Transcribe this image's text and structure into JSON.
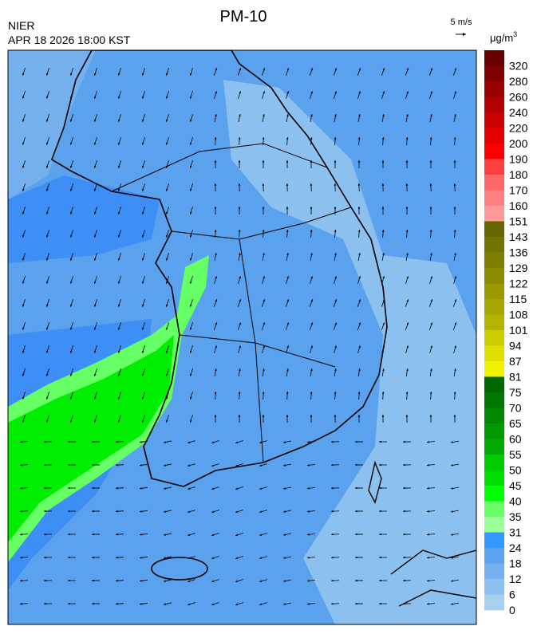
{
  "header": {
    "title": "PM-10",
    "agency": "NIER",
    "datetime": "APR 18 2026 18:00 KST",
    "scale_label": "5 m/s"
  },
  "colorbar": {
    "unit": "μg/m",
    "unit_sup": "3",
    "labels": [
      320,
      280,
      260,
      240,
      220,
      200,
      190,
      180,
      170,
      160,
      151,
      143,
      136,
      129,
      122,
      115,
      108,
      101,
      94,
      87,
      81,
      75,
      70,
      65,
      60,
      55,
      50,
      45,
      40,
      35,
      31,
      24,
      18,
      12,
      6,
      0
    ],
    "colors": [
      "#660000",
      "#800000",
      "#990000",
      "#b30000",
      "#cc0000",
      "#e60000",
      "#ff0000",
      "#ff4040",
      "#ff6666",
      "#ff8080",
      "#ff9999",
      "#666600",
      "#737300",
      "#808000",
      "#8c8c00",
      "#999900",
      "#a6a600",
      "#b3b300",
      "#cccc00",
      "#e0e000",
      "#f2f200",
      "#006600",
      "#007700",
      "#008800",
      "#009900",
      "#00aa00",
      "#00cc00",
      "#00dd00",
      "#00ff00",
      "#66ff66",
      "#99ff99",
      "#3399ff",
      "#5ba2ee",
      "#74b0ee",
      "#8cc0ee",
      "#a6d0ee"
    ]
  }
}
